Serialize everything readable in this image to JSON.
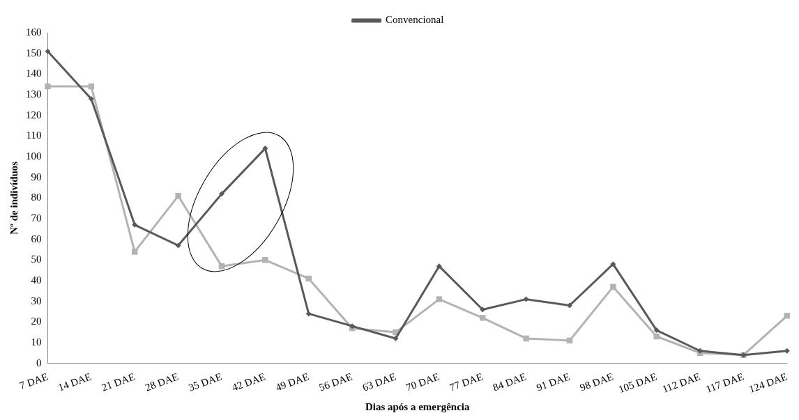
{
  "chart_data": {
    "type": "line",
    "xlabel": "Dias após a emergência",
    "ylabel": "Nº de indivíduos",
    "categories": [
      "7 DAE",
      "14 DAE",
      "21 DAE",
      "28 DAE",
      "35 DAE",
      "42 DAE",
      "49 DAE",
      "56 DAE",
      "63 DAE",
      "70 DAE",
      "77 DAE",
      "84 DAE",
      "91 DAE",
      "98 DAE",
      "105 DAE",
      "112 DAE",
      "117 DAE",
      "124 DAE"
    ],
    "series": [
      {
        "name": "Convencional",
        "color": "#595959",
        "marker": "diamond",
        "values": [
          151,
          128,
          67,
          57,
          82,
          104,
          24,
          18,
          12,
          47,
          26,
          31,
          28,
          48,
          16,
          6,
          4,
          6
        ]
      },
      {
        "color": "#b3b3b3",
        "marker": "square",
        "values": [
          134,
          134,
          54,
          81,
          47,
          50,
          41,
          17,
          15,
          31,
          22,
          12,
          11,
          37,
          13,
          5,
          4,
          23
        ]
      }
    ],
    "ylim": [
      0,
      160
    ],
    "yticks": [
      0,
      10,
      20,
      30,
      40,
      50,
      60,
      70,
      80,
      90,
      100,
      110,
      120,
      130,
      140,
      150,
      160
    ],
    "grid": false,
    "legend": "top",
    "line_style": "solid"
  }
}
